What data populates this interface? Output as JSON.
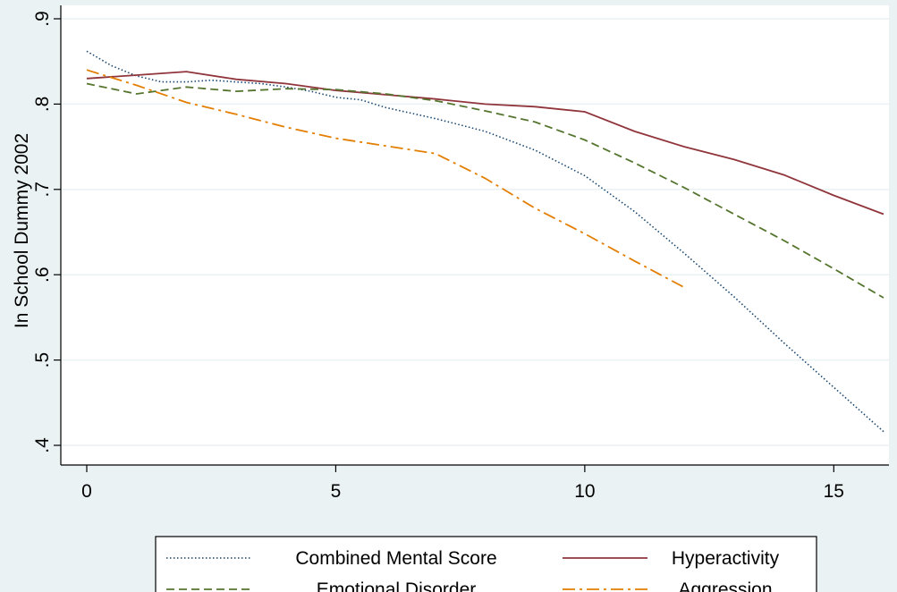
{
  "chart_data": {
    "type": "line",
    "title": "",
    "xlabel": "",
    "ylabel": "In School Dummy 2002",
    "xlim": [
      0,
      16
    ],
    "ylim": [
      0.4,
      0.9
    ],
    "x_ticks": [
      0,
      5,
      10,
      15
    ],
    "x_tick_labels": [
      "0",
      "5",
      "10",
      "15"
    ],
    "y_ticks": [
      0.4,
      0.5,
      0.6,
      0.7,
      0.8,
      0.9
    ],
    "y_tick_labels": [
      ".4",
      ".5",
      ".6",
      ".7",
      ".8",
      ".9"
    ],
    "grid": "horizontal",
    "legend_position": "bottom",
    "series": [
      {
        "name": "Combined Mental Score",
        "color": "#1a476f",
        "dash": "dotted",
        "x": [
          0,
          0.5,
          1,
          1.5,
          2,
          2.5,
          3,
          3.5,
          4,
          4.5,
          5,
          5.5,
          6,
          7,
          8,
          9,
          10,
          11,
          12,
          13,
          14,
          15,
          16
        ],
        "y": [
          0.862,
          0.845,
          0.833,
          0.826,
          0.826,
          0.828,
          0.826,
          0.824,
          0.82,
          0.815,
          0.808,
          0.805,
          0.796,
          0.783,
          0.768,
          0.746,
          0.716,
          0.674,
          0.625,
          0.574,
          0.52,
          0.468,
          0.416
        ]
      },
      {
        "name": "Hyperactivity",
        "color": "#90353b",
        "dash": "solid",
        "x": [
          0,
          1,
          2,
          3,
          4,
          5,
          6,
          7,
          8,
          9,
          10,
          11,
          12,
          13,
          14,
          15,
          16
        ],
        "y": [
          0.83,
          0.834,
          0.838,
          0.829,
          0.824,
          0.816,
          0.811,
          0.806,
          0.8,
          0.797,
          0.791,
          0.768,
          0.75,
          0.735,
          0.717,
          0.693,
          0.671
        ]
      },
      {
        "name": "Emotional Disorder",
        "color": "#55752f",
        "dash": "dashed",
        "x": [
          0,
          1,
          2,
          3,
          4,
          5,
          6,
          7,
          8,
          9,
          10,
          11,
          12,
          13,
          14,
          15,
          16
        ],
        "y": [
          0.824,
          0.812,
          0.82,
          0.815,
          0.818,
          0.817,
          0.812,
          0.804,
          0.792,
          0.779,
          0.758,
          0.731,
          0.702,
          0.671,
          0.64,
          0.607,
          0.573
        ]
      },
      {
        "name": "Aggression",
        "color": "#e37e00",
        "dash": "dashdot",
        "x": [
          0,
          1,
          2,
          3,
          4,
          5,
          6,
          7,
          8,
          9,
          10,
          11,
          12
        ],
        "y": [
          0.84,
          0.822,
          0.802,
          0.788,
          0.773,
          0.76,
          0.751,
          0.742,
          0.713,
          0.678,
          0.648,
          0.616,
          0.585
        ]
      }
    ],
    "legend": {
      "rows": [
        [
          "Combined Mental Score",
          "Hyperactivity"
        ],
        [
          "Emotional Disorder",
          "Aggression"
        ]
      ]
    }
  }
}
